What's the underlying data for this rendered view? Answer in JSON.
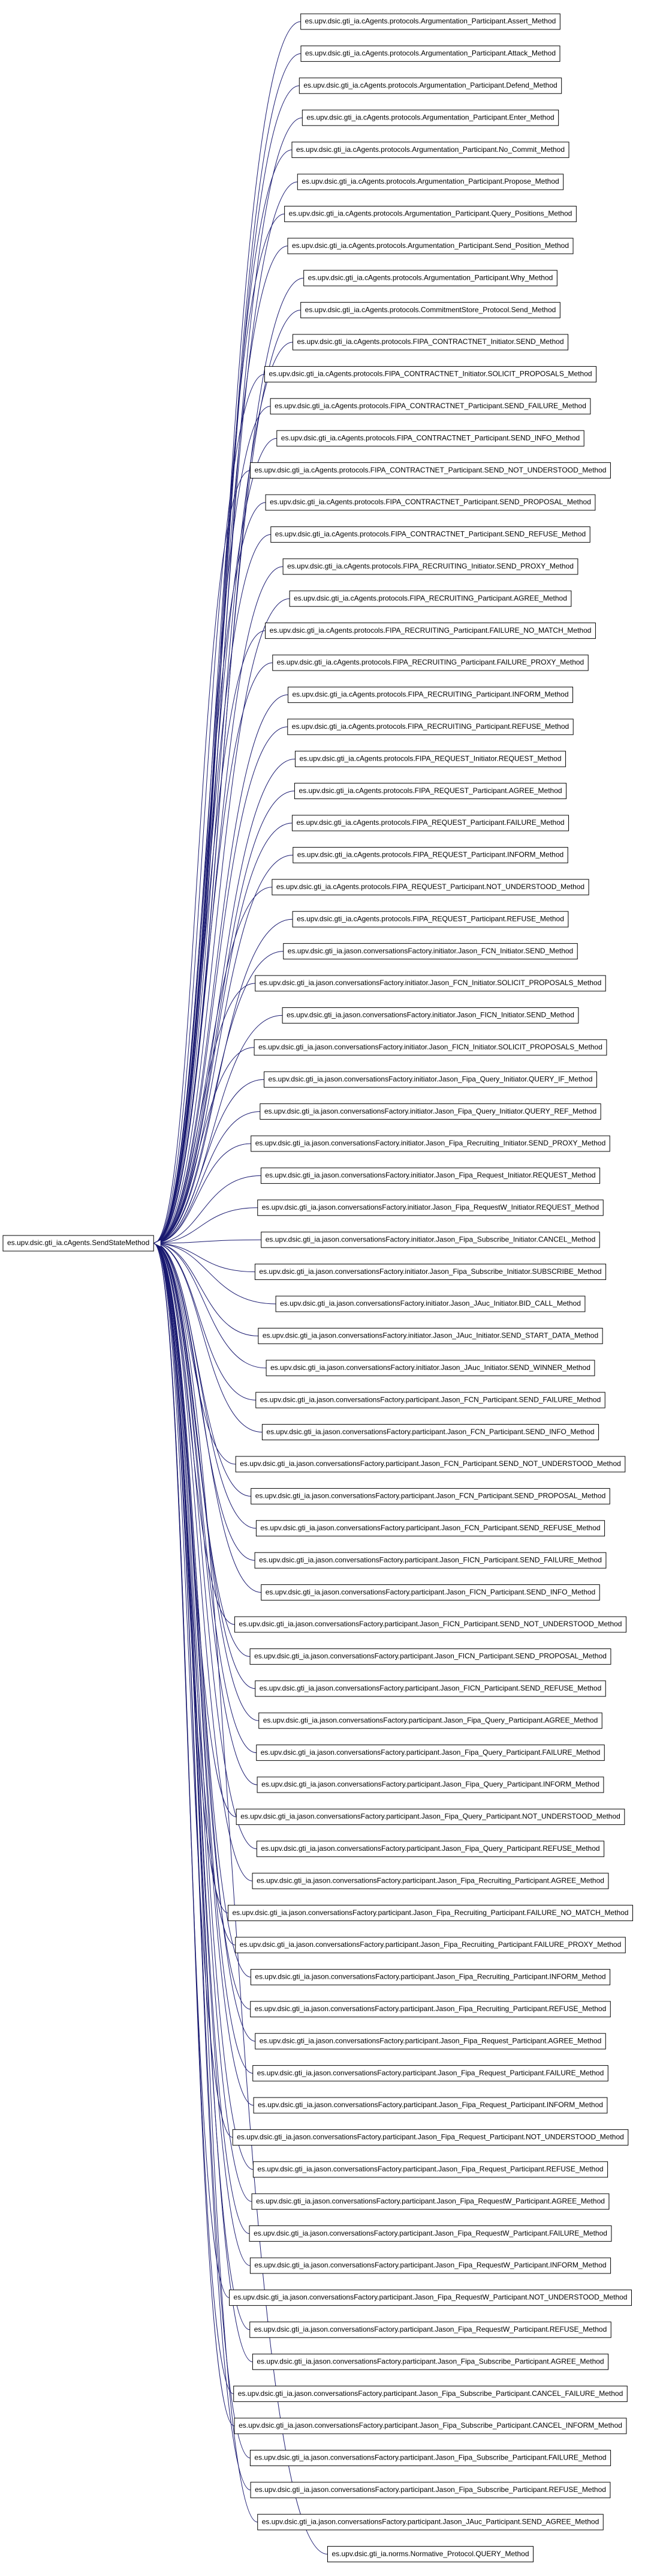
{
  "root": {
    "label": "es.upv.dsic.gti_ia.cAgents.SendStateMethod"
  },
  "nodes": [
    {
      "label": "es.upv.dsic.gti_ia.cAgents.protocols.Argumentation_Participant.Assert_Method"
    },
    {
      "label": "es.upv.dsic.gti_ia.cAgents.protocols.Argumentation_Participant.Attack_Method"
    },
    {
      "label": "es.upv.dsic.gti_ia.cAgents.protocols.Argumentation_Participant.Defend_Method"
    },
    {
      "label": "es.upv.dsic.gti_ia.cAgents.protocols.Argumentation_Participant.Enter_Method"
    },
    {
      "label": "es.upv.dsic.gti_ia.cAgents.protocols.Argumentation_Participant.No_Commit_Method"
    },
    {
      "label": "es.upv.dsic.gti_ia.cAgents.protocols.Argumentation_Participant.Propose_Method"
    },
    {
      "label": "es.upv.dsic.gti_ia.cAgents.protocols.Argumentation_Participant.Query_Positions_Method"
    },
    {
      "label": "es.upv.dsic.gti_ia.cAgents.protocols.Argumentation_Participant.Send_Position_Method"
    },
    {
      "label": "es.upv.dsic.gti_ia.cAgents.protocols.Argumentation_Participant.Why_Method"
    },
    {
      "label": "es.upv.dsic.gti_ia.cAgents.protocols.CommitmentStore_Protocol.Send_Method"
    },
    {
      "label": "es.upv.dsic.gti_ia.cAgents.protocols.FIPA_CONTRACTNET_Initiator.SEND_Method"
    },
    {
      "label": "es.upv.dsic.gti_ia.cAgents.protocols.FIPA_CONTRACTNET_Initiator.SOLICIT_PROPOSALS_Method"
    },
    {
      "label": "es.upv.dsic.gti_ia.cAgents.protocols.FIPA_CONTRACTNET_Participant.SEND_FAILURE_Method"
    },
    {
      "label": "es.upv.dsic.gti_ia.cAgents.protocols.FIPA_CONTRACTNET_Participant.SEND_INFO_Method"
    },
    {
      "label": "es.upv.dsic.gti_ia.cAgents.protocols.FIPA_CONTRACTNET_Participant.SEND_NOT_UNDERSTOOD_Method"
    },
    {
      "label": "es.upv.dsic.gti_ia.cAgents.protocols.FIPA_CONTRACTNET_Participant.SEND_PROPOSAL_Method"
    },
    {
      "label": "es.upv.dsic.gti_ia.cAgents.protocols.FIPA_CONTRACTNET_Participant.SEND_REFUSE_Method"
    },
    {
      "label": "es.upv.dsic.gti_ia.cAgents.protocols.FIPA_RECRUITING_Initiator.SEND_PROXY_Method"
    },
    {
      "label": "es.upv.dsic.gti_ia.cAgents.protocols.FIPA_RECRUITING_Participant.AGREE_Method"
    },
    {
      "label": "es.upv.dsic.gti_ia.cAgents.protocols.FIPA_RECRUITING_Participant.FAILURE_NO_MATCH_Method"
    },
    {
      "label": "es.upv.dsic.gti_ia.cAgents.protocols.FIPA_RECRUITING_Participant.FAILURE_PROXY_Method"
    },
    {
      "label": "es.upv.dsic.gti_ia.cAgents.protocols.FIPA_RECRUITING_Participant.INFORM_Method"
    },
    {
      "label": "es.upv.dsic.gti_ia.cAgents.protocols.FIPA_RECRUITING_Participant.REFUSE_Method"
    },
    {
      "label": "es.upv.dsic.gti_ia.cAgents.protocols.FIPA_REQUEST_Initiator.REQUEST_Method"
    },
    {
      "label": "es.upv.dsic.gti_ia.cAgents.protocols.FIPA_REQUEST_Participant.AGREE_Method"
    },
    {
      "label": "es.upv.dsic.gti_ia.cAgents.protocols.FIPA_REQUEST_Participant.FAILURE_Method"
    },
    {
      "label": "es.upv.dsic.gti_ia.cAgents.protocols.FIPA_REQUEST_Participant.INFORM_Method"
    },
    {
      "label": "es.upv.dsic.gti_ia.cAgents.protocols.FIPA_REQUEST_Participant.NOT_UNDERSTOOD_Method"
    },
    {
      "label": "es.upv.dsic.gti_ia.cAgents.protocols.FIPA_REQUEST_Participant.REFUSE_Method"
    },
    {
      "label": "es.upv.dsic.gti_ia.jason.conversationsFactory.initiator.Jason_FCN_Initiator.SEND_Method"
    },
    {
      "label": "es.upv.dsic.gti_ia.jason.conversationsFactory.initiator.Jason_FCN_Initiator.SOLICIT_PROPOSALS_Method"
    },
    {
      "label": "es.upv.dsic.gti_ia.jason.conversationsFactory.initiator.Jason_FICN_Initiator.SEND_Method"
    },
    {
      "label": "es.upv.dsic.gti_ia.jason.conversationsFactory.initiator.Jason_FICN_Initiator.SOLICIT_PROPOSALS_Method"
    },
    {
      "label": "es.upv.dsic.gti_ia.jason.conversationsFactory.initiator.Jason_Fipa_Query_Initiator.QUERY_IF_Method"
    },
    {
      "label": "es.upv.dsic.gti_ia.jason.conversationsFactory.initiator.Jason_Fipa_Query_Initiator.QUERY_REF_Method"
    },
    {
      "label": "es.upv.dsic.gti_ia.jason.conversationsFactory.initiator.Jason_Fipa_Recruiting_Initiator.SEND_PROXY_Method"
    },
    {
      "label": "es.upv.dsic.gti_ia.jason.conversationsFactory.initiator.Jason_Fipa_Request_Initiator.REQUEST_Method"
    },
    {
      "label": "es.upv.dsic.gti_ia.jason.conversationsFactory.initiator.Jason_Fipa_RequestW_Initiator.REQUEST_Method"
    },
    {
      "label": "es.upv.dsic.gti_ia.jason.conversationsFactory.initiator.Jason_Fipa_Subscribe_Initiator.CANCEL_Method"
    },
    {
      "label": "es.upv.dsic.gti_ia.jason.conversationsFactory.initiator.Jason_Fipa_Subscribe_Initiator.SUBSCRIBE_Method"
    },
    {
      "label": "es.upv.dsic.gti_ia.jason.conversationsFactory.initiator.Jason_JAuc_Initiator.BID_CALL_Method"
    },
    {
      "label": "es.upv.dsic.gti_ia.jason.conversationsFactory.initiator.Jason_JAuc_Initiator.SEND_START_DATA_Method"
    },
    {
      "label": "es.upv.dsic.gti_ia.jason.conversationsFactory.initiator.Jason_JAuc_Initiator.SEND_WINNER_Method"
    },
    {
      "label": "es.upv.dsic.gti_ia.jason.conversationsFactory.participant.Jason_FCN_Participant.SEND_FAILURE_Method"
    },
    {
      "label": "es.upv.dsic.gti_ia.jason.conversationsFactory.participant.Jason_FCN_Participant.SEND_INFO_Method"
    },
    {
      "label": "es.upv.dsic.gti_ia.jason.conversationsFactory.participant.Jason_FCN_Participant.SEND_NOT_UNDERSTOOD_Method"
    },
    {
      "label": "es.upv.dsic.gti_ia.jason.conversationsFactory.participant.Jason_FCN_Participant.SEND_PROPOSAL_Method"
    },
    {
      "label": "es.upv.dsic.gti_ia.jason.conversationsFactory.participant.Jason_FCN_Participant.SEND_REFUSE_Method"
    },
    {
      "label": "es.upv.dsic.gti_ia.jason.conversationsFactory.participant.Jason_FICN_Participant.SEND_FAILURE_Method"
    },
    {
      "label": "es.upv.dsic.gti_ia.jason.conversationsFactory.participant.Jason_FICN_Participant.SEND_INFO_Method"
    },
    {
      "label": "es.upv.dsic.gti_ia.jason.conversationsFactory.participant.Jason_FICN_Participant.SEND_NOT_UNDERSTOOD_Method"
    },
    {
      "label": "es.upv.dsic.gti_ia.jason.conversationsFactory.participant.Jason_FICN_Participant.SEND_PROPOSAL_Method"
    },
    {
      "label": "es.upv.dsic.gti_ia.jason.conversationsFactory.participant.Jason_FICN_Participant.SEND_REFUSE_Method"
    },
    {
      "label": "es.upv.dsic.gti_ia.jason.conversationsFactory.participant.Jason_Fipa_Query_Participant.AGREE_Method"
    },
    {
      "label": "es.upv.dsic.gti_ia.jason.conversationsFactory.participant.Jason_Fipa_Query_Participant.FAILURE_Method"
    },
    {
      "label": "es.upv.dsic.gti_ia.jason.conversationsFactory.participant.Jason_Fipa_Query_Participant.INFORM_Method"
    },
    {
      "label": "es.upv.dsic.gti_ia.jason.conversationsFactory.participant.Jason_Fipa_Query_Participant.NOT_UNDERSTOOD_Method"
    },
    {
      "label": "es.upv.dsic.gti_ia.jason.conversationsFactory.participant.Jason_Fipa_Query_Participant.REFUSE_Method"
    },
    {
      "label": "es.upv.dsic.gti_ia.jason.conversationsFactory.participant.Jason_Fipa_Recruiting_Participant.AGREE_Method"
    },
    {
      "label": "es.upv.dsic.gti_ia.jason.conversationsFactory.participant.Jason_Fipa_Recruiting_Participant.FAILURE_NO_MATCH_Method"
    },
    {
      "label": "es.upv.dsic.gti_ia.jason.conversationsFactory.participant.Jason_Fipa_Recruiting_Participant.FAILURE_PROXY_Method"
    },
    {
      "label": "es.upv.dsic.gti_ia.jason.conversationsFactory.participant.Jason_Fipa_Recruiting_Participant.INFORM_Method"
    },
    {
      "label": "es.upv.dsic.gti_ia.jason.conversationsFactory.participant.Jason_Fipa_Recruiting_Participant.REFUSE_Method"
    },
    {
      "label": "es.upv.dsic.gti_ia.jason.conversationsFactory.participant.Jason_Fipa_Request_Participant.AGREE_Method"
    },
    {
      "label": "es.upv.dsic.gti_ia.jason.conversationsFactory.participant.Jason_Fipa_Request_Participant.FAILURE_Method"
    },
    {
      "label": "es.upv.dsic.gti_ia.jason.conversationsFactory.participant.Jason_Fipa_Request_Participant.INFORM_Method"
    },
    {
      "label": "es.upv.dsic.gti_ia.jason.conversationsFactory.participant.Jason_Fipa_Request_Participant.NOT_UNDERSTOOD_Method"
    },
    {
      "label": "es.upv.dsic.gti_ia.jason.conversationsFactory.participant.Jason_Fipa_Request_Participant.REFUSE_Method"
    },
    {
      "label": "es.upv.dsic.gti_ia.jason.conversationsFactory.participant.Jason_Fipa_RequestW_Participant.AGREE_Method"
    },
    {
      "label": "es.upv.dsic.gti_ia.jason.conversationsFactory.participant.Jason_Fipa_RequestW_Participant.FAILURE_Method"
    },
    {
      "label": "es.upv.dsic.gti_ia.jason.conversationsFactory.participant.Jason_Fipa_RequestW_Participant.INFORM_Method"
    },
    {
      "label": "es.upv.dsic.gti_ia.jason.conversationsFactory.participant.Jason_Fipa_RequestW_Participant.NOT_UNDERSTOOD_Method"
    },
    {
      "label": "es.upv.dsic.gti_ia.jason.conversationsFactory.participant.Jason_Fipa_RequestW_Participant.REFUSE_Method"
    },
    {
      "label": "es.upv.dsic.gti_ia.jason.conversationsFactory.participant.Jason_Fipa_Subscribe_Participant.AGREE_Method"
    },
    {
      "label": "es.upv.dsic.gti_ia.jason.conversationsFactory.participant.Jason_Fipa_Subscribe_Participant.CANCEL_FAILURE_Method"
    },
    {
      "label": "es.upv.dsic.gti_ia.jason.conversationsFactory.participant.Jason_Fipa_Subscribe_Participant.CANCEL_INFORM_Method"
    },
    {
      "label": "es.upv.dsic.gti_ia.jason.conversationsFactory.participant.Jason_Fipa_Subscribe_Participant.FAILURE_Method"
    },
    {
      "label": "es.upv.dsic.gti_ia.jason.conversationsFactory.participant.Jason_Fipa_Subscribe_Participant.REFUSE_Method"
    },
    {
      "label": "es.upv.dsic.gti_ia.jason.conversationsFactory.participant.Jason_JAuc_Participant.SEND_AGREE_Method"
    },
    {
      "label": "es.upv.dsic.gti_ia.norms.Normative_Protocol.QUERY_Method"
    }
  ]
}
